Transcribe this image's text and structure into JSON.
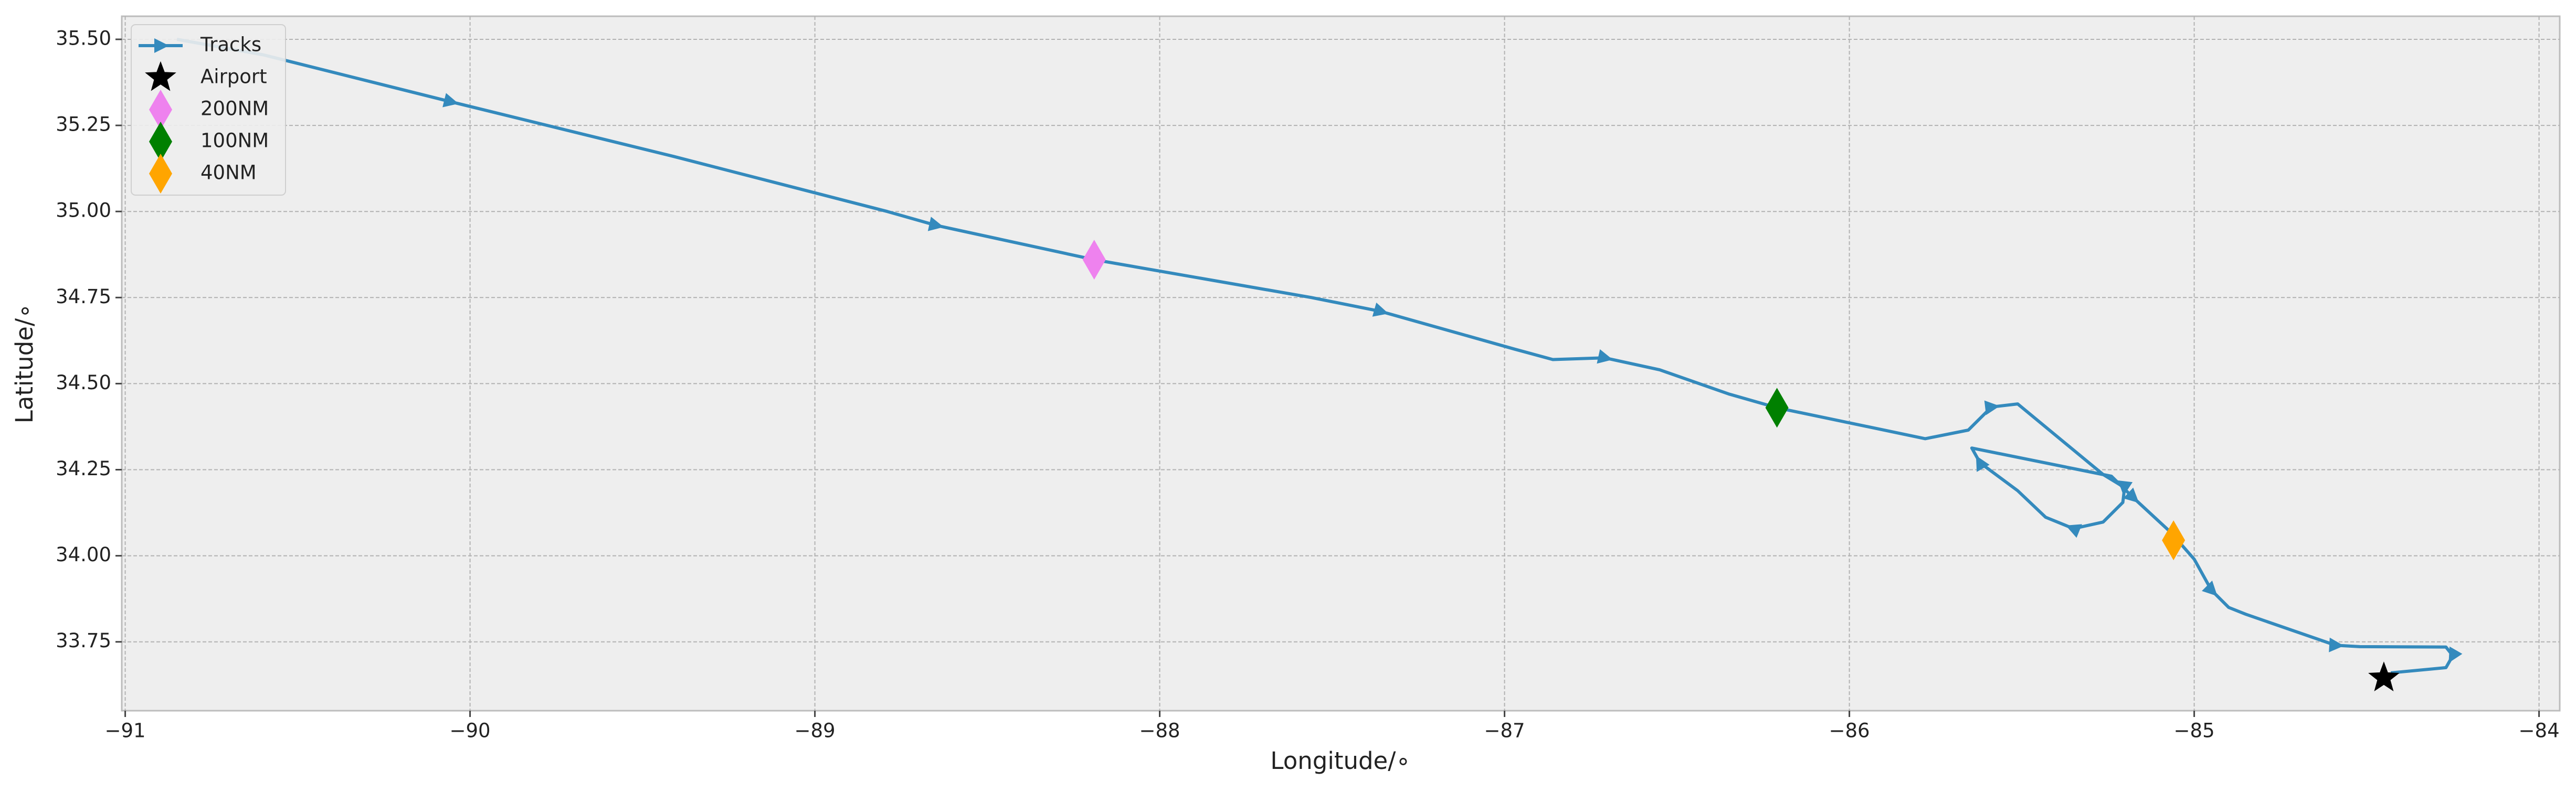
{
  "chart_data": {
    "type": "line",
    "xlabel": "Longitude/∘",
    "ylabel": "Latitude/∘",
    "xlim": [
      -91.01,
      -83.94
    ],
    "ylim": [
      33.55,
      35.567
    ],
    "xticks": [
      {
        "value": -91,
        "label": "−91"
      },
      {
        "value": -90,
        "label": "−90"
      },
      {
        "value": -89,
        "label": "−89"
      },
      {
        "value": -88,
        "label": "−88"
      },
      {
        "value": -87,
        "label": "−87"
      },
      {
        "value": -86,
        "label": "−86"
      },
      {
        "value": -85,
        "label": "−85"
      },
      {
        "value": -84,
        "label": "−84"
      }
    ],
    "yticks": [
      33.75,
      {
        "value": 34,
        "label": "34.00"
      },
      34.25,
      {
        "value": 34.5,
        "label": "34.50"
      },
      34.75,
      {
        "value": 35,
        "label": "35.00"
      },
      35.25,
      {
        "value": 35.5,
        "label": "35.50"
      }
    ],
    "grid": true,
    "legend": "upper left",
    "series": [
      {
        "name": "Tracks",
        "marker": "arrow",
        "color": "#348abd",
        "x": [
          -90.85,
          -90.6,
          -90.057,
          -89.41,
          -88.79,
          -88.65,
          -88.19,
          -87.56,
          -87.36,
          -86.97,
          -86.86,
          -86.71,
          -86.55,
          -86.35,
          -86.21,
          -85.78,
          -85.655,
          -85.588,
          -85.512,
          -85.264,
          -85.202,
          -85.207,
          -85.264,
          -85.35,
          -85.431,
          -85.512,
          -85.621,
          -85.645,
          -85.24,
          -85.178,
          -85.07,
          -85.0,
          -84.95,
          -84.9,
          -84.85,
          -84.59,
          -84.52,
          -84.27,
          -84.25,
          -84.27,
          -84.43
        ],
        "y": [
          35.5,
          35.455,
          35.319,
          35.16,
          35.0,
          34.96,
          34.86,
          34.75,
          34.71,
          34.6,
          34.57,
          34.575,
          34.54,
          34.47,
          34.43,
          34.34,
          34.365,
          34.432,
          34.441,
          34.236,
          34.198,
          34.155,
          34.098,
          34.079,
          34.112,
          34.189,
          34.27,
          34.313,
          34.231,
          34.17,
          34.07,
          33.99,
          33.9,
          33.85,
          33.83,
          33.74,
          33.736,
          33.735,
          33.71,
          33.675,
          33.66
        ]
      },
      {
        "name": "Airport",
        "marker": "star",
        "color": "#000000",
        "x": [
          -84.45
        ],
        "y": [
          33.645
        ]
      },
      {
        "name": "200NM",
        "marker": "diamond",
        "color": "#ee82ee",
        "x": [
          -88.19
        ],
        "y": [
          34.86
        ]
      },
      {
        "name": "100NM",
        "marker": "diamond",
        "color": "#008000",
        "x": [
          -86.21
        ],
        "y": [
          34.43
        ]
      },
      {
        "name": "40NM",
        "marker": "diamond",
        "color": "#ffa500",
        "x": [
          -85.06
        ],
        "y": [
          34.045
        ]
      }
    ]
  }
}
